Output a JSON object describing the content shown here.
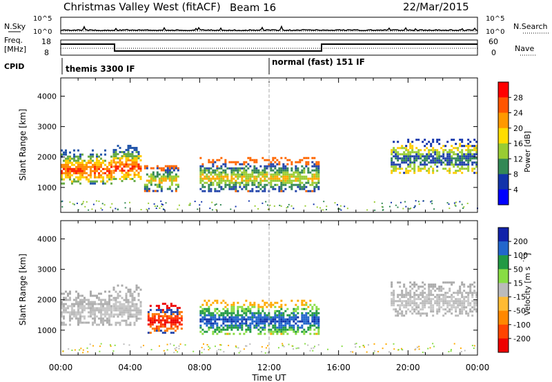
{
  "header": {
    "station": "Christmas Valley West (fitACF)",
    "beam": "Beam 16",
    "date": "22/Mar/2015"
  },
  "noise_panel": {
    "left_label": "N.Sky",
    "right_label": "N.Search",
    "left_ticks": [
      "10^5",
      "10^0"
    ],
    "right_ticks": [
      "10^5",
      "10^0"
    ]
  },
  "freq_panel": {
    "left_label": "Freq.",
    "left_unit": "[MHz]",
    "left_ticks": [
      "18",
      "8"
    ],
    "right_label": "Nave",
    "right_ticks": [
      "60",
      "0"
    ]
  },
  "cpid_panel": {
    "label": "CPID",
    "modes": [
      {
        "name": "themis 3300 IF",
        "start_hour": 0
      },
      {
        "name": "normal (fast) 151 IF",
        "start_hour": 12
      }
    ]
  },
  "chart_data": [
    {
      "type": "heatmap",
      "title": "Power",
      "ylabel": "Slant Range [km]",
      "xlabel": "",
      "y_range": [
        180,
        4600
      ],
      "y_ticks": [
        1000,
        2000,
        3000,
        4000
      ],
      "x_range_hours": [
        0,
        24
      ],
      "colorbar": {
        "label": "Power [dB]",
        "ticks": [
          "28",
          "24",
          "20",
          "16",
          "12",
          "8",
          "4"
        ],
        "colors": [
          "#ff0000",
          "#ff5500",
          "#ff9900",
          "#ffdd00",
          "#99cc33",
          "#338855",
          "#1133aa",
          "#0000ff"
        ]
      },
      "echo_regions": [
        {
          "t_start": 0.0,
          "t_end": 2.9,
          "range_start": 1150,
          "range_end": 2250,
          "level": "high"
        },
        {
          "t_start": 3.0,
          "t_end": 4.6,
          "range_start": 1200,
          "range_end": 2400,
          "level": "high"
        },
        {
          "t_start": 4.8,
          "t_end": 6.8,
          "range_start": 900,
          "range_end": 1800,
          "level": "medium"
        },
        {
          "t_start": 8.0,
          "t_end": 14.8,
          "range_start": 900,
          "range_end": 2000,
          "level": "medium"
        },
        {
          "t_start": 19.0,
          "t_end": 24.0,
          "range_start": 1500,
          "range_end": 2600,
          "level": "low"
        }
      ]
    },
    {
      "type": "heatmap",
      "title": "Velocity",
      "ylabel": "Slant Range [km]",
      "xlabel": "Time UT",
      "y_range": [
        180,
        4600
      ],
      "y_ticks": [
        1000,
        2000,
        3000,
        4000
      ],
      "x_range_hours": [
        0,
        24
      ],
      "x_ticks": [
        "00:00",
        "04:00",
        "08:00",
        "12:00",
        "16:00",
        "20:00",
        "00:00"
      ],
      "colorbar": {
        "label": "Velocity [m s",
        "ticks": [
          "200",
          "100",
          "50",
          "15",
          "-15",
          "-50",
          "-100",
          "-200"
        ],
        "colors": [
          "#1122aa",
          "#2266cc",
          "#229944",
          "#88dd44",
          "#bbbbbb",
          "#ffbb33",
          "#ff8800",
          "#ff4400",
          "#ee0000"
        ]
      },
      "echo_regions": [
        {
          "t_start": 0.0,
          "t_end": 2.9,
          "range_start": 1200,
          "range_end": 2300,
          "level": "ground"
        },
        {
          "t_start": 3.0,
          "t_end": 4.6,
          "range_start": 1200,
          "range_end": 2500,
          "level": "ground"
        },
        {
          "t_start": 5.0,
          "t_end": 7.0,
          "range_start": 900,
          "range_end": 1900,
          "level": "negative"
        },
        {
          "t_start": 8.0,
          "t_end": 14.8,
          "range_start": 900,
          "range_end": 2000,
          "level": "positive"
        },
        {
          "t_start": 19.0,
          "t_end": 24.0,
          "range_start": 1500,
          "range_end": 2600,
          "level": "ground"
        }
      ]
    }
  ]
}
